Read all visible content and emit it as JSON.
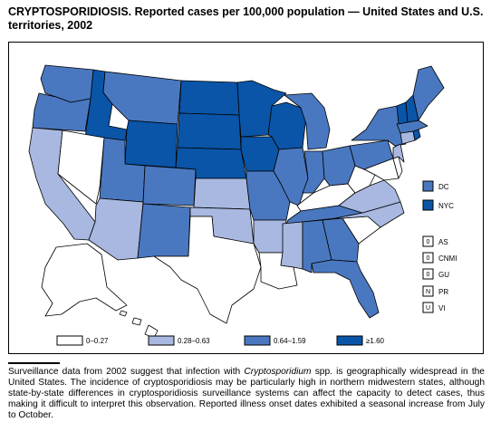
{
  "title": "CRYPTOSPORIDIOSIS. Reported cases per 100,000 population — United States and U.S. territories, 2002",
  "legend": {
    "bins": [
      {
        "label": "0–0.27",
        "color": "#ffffff"
      },
      {
        "label": "0.28–0.63",
        "color": "#a8b8e0"
      },
      {
        "label": "0.64–1.59",
        "color": "#4a78c0"
      },
      {
        "label": "≥1.60",
        "color": "#0a55a8"
      }
    ]
  },
  "insets": {
    "dc": {
      "label": "DC",
      "color": "#4a78c0"
    },
    "nyc": {
      "label": "NYC",
      "color": "#0a55a8"
    }
  },
  "territories": [
    {
      "code": "0",
      "label": "AS"
    },
    {
      "code": "0",
      "label": "CNMI"
    },
    {
      "code": "0",
      "label": "GU"
    },
    {
      "code": "N",
      "label": "PR"
    },
    {
      "code": "U",
      "label": "VI"
    }
  ],
  "caption": {
    "pre": "Surveillance data from 2002 suggest that infection with ",
    "italic": "Cryptosporidium",
    "post": " spp. is geographically widespread in the United States. The incidence of cryptosporidiosis may be particularly high in northern midwestern states, although state-by-state differences in cryptosporidiosis surveillance systems can affect the capacity to detect cases, thus making it difficult to interpret this observation. Reported illness onset dates exhibited a seasonal increase from July to October."
  }
}
